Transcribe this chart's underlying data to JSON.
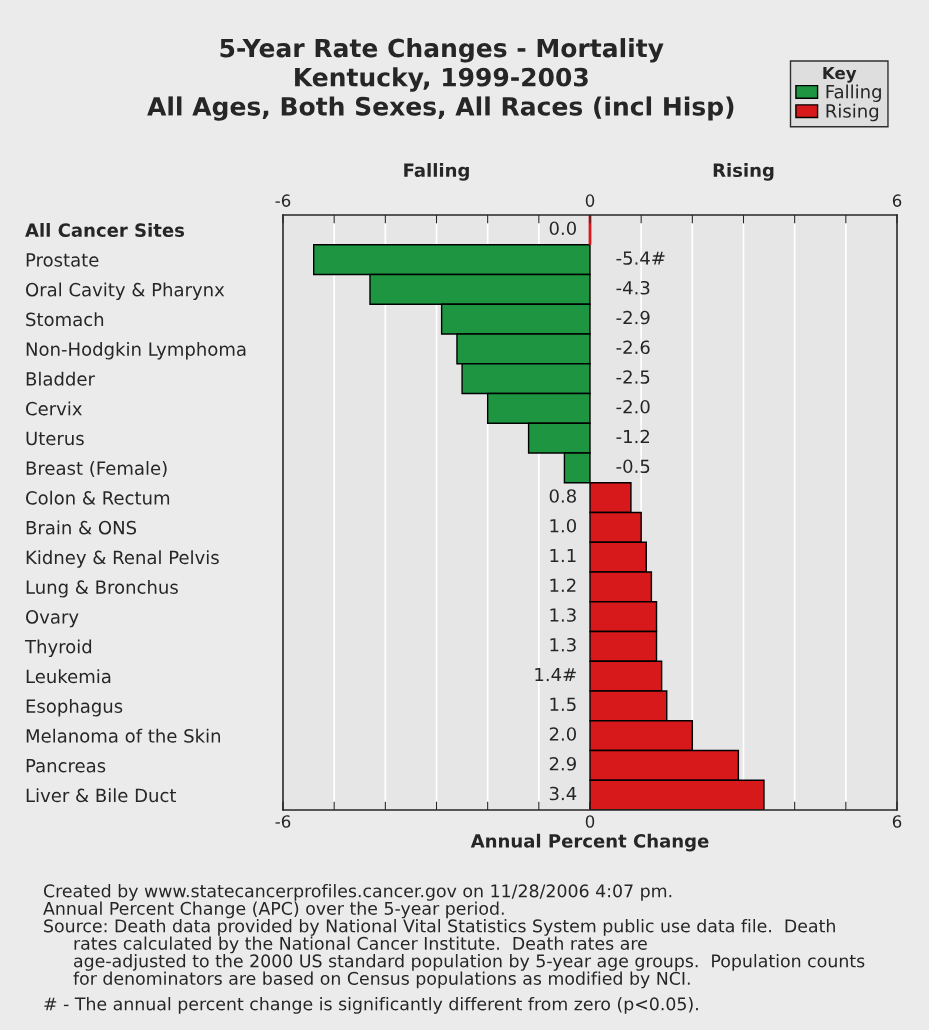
{
  "chart_data": {
    "type": "bar",
    "orientation": "horizontal",
    "title": "5-Year Rate Changes - Mortality\nKentucky, 1999-2003\nAll Ages, Both Sexes, All Races (incl Hisp)",
    "xlabel": "Annual Percent Change",
    "legend_title": "Key",
    "categories": [
      "All Cancer Sites",
      "Prostate",
      "Oral Cavity & Pharynx",
      "Stomach",
      "Non-Hodgkin Lymphoma",
      "Bladder",
      "Cervix",
      "Uterus",
      "Breast (Female)",
      "Colon & Rectum",
      "Brain & ONS",
      "Kidney & Renal Pelvis",
      "Lung & Bronchus",
      "Ovary",
      "Thyroid",
      "Leukemia",
      "Esophagus",
      "Melanoma of the Skin",
      "Pancreas",
      "Liver & Bile Duct"
    ],
    "series": [
      {
        "name": "Falling",
        "color": "#1e9641",
        "values": [
          null,
          -5.4,
          -4.3,
          -2.9,
          -2.6,
          -2.5,
          -2.0,
          -1.2,
          -0.5,
          null,
          null,
          null,
          null,
          null,
          null,
          null,
          null,
          null,
          null,
          null
        ]
      },
      {
        "name": "Rising",
        "color": "#d7191c",
        "values": [
          0.0,
          null,
          null,
          null,
          null,
          null,
          null,
          null,
          null,
          0.8,
          1.0,
          1.1,
          1.2,
          1.3,
          1.3,
          1.4,
          1.5,
          2.0,
          2.9,
          3.4
        ]
      }
    ],
    "value_labels": [
      "0.0",
      "-5.4#",
      "-4.3",
      "-2.9",
      "-2.6",
      "-2.5",
      "-2.0",
      "-1.2",
      "-0.5",
      "0.8",
      "1.0",
      "1.1",
      "1.2",
      "1.3",
      "1.3",
      "1.4#",
      "1.5",
      "2.0",
      "2.9",
      "3.4"
    ],
    "xlim": [
      -6,
      6
    ],
    "xticks": [
      -6,
      {
        "value": -5,
        "label": null
      },
      {
        "value": -4,
        "label": null
      },
      {
        "value": -3,
        "label": null
      },
      {
        "value": -2,
        "label": null
      },
      {
        "value": -1,
        "label": null
      },
      0,
      {
        "value": 1,
        "label": null
      },
      {
        "value": 2,
        "label": null
      },
      {
        "value": 3,
        "label": null
      },
      {
        "value": 4,
        "label": null
      },
      {
        "value": 5,
        "label": null
      },
      6
    ],
    "x2lim": [
      -6,
      6
    ],
    "x2ticks": [
      -6,
      {
        "value": -5,
        "label": null
      },
      {
        "value": -4,
        "label": null
      },
      {
        "value": -3,
        "label": null
      },
      {
        "value": -2,
        "label": null
      },
      {
        "value": -1,
        "label": null
      },
      0,
      {
        "value": 1,
        "label": null
      },
      {
        "value": 2,
        "label": null
      },
      {
        "value": 3,
        "label": null
      },
      {
        "value": 4,
        "label": null
      },
      {
        "value": 5,
        "label": null
      },
      6
    ],
    "grid": "x",
    "legend": "top right",
    "annotations": [
      "Falling",
      "Rising",
      "Created by www.statecancerprofiles.cancer.gov on 11/28/2006 4:07 pm.",
      "Annual Percent Change (APC) over the 5-year period.",
      "Source: Death data provided by National Vital Statistics System public use data file.  Death",
      "rates calculated by the National Cancer Institute.  Death rates are",
      "age-adjusted to the 2000 US standard population by 5-year age groups.  Population counts",
      "for denominators are based on Census populations as modified by NCI.",
      "# - The annual percent change is significantly different from zero (p<0.05)."
    ]
  }
}
